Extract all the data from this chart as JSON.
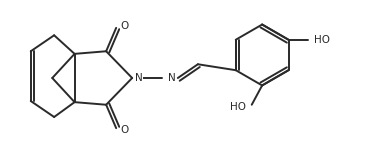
{
  "background": "#ffffff",
  "line_color": "#2a2a2a",
  "line_width": 1.4,
  "font_size": 7.5,
  "fig_width": 3.72,
  "fig_height": 1.56,
  "dpi": 100,
  "xlim": [
    0,
    10
  ],
  "ylim": [
    0,
    4.2
  ]
}
